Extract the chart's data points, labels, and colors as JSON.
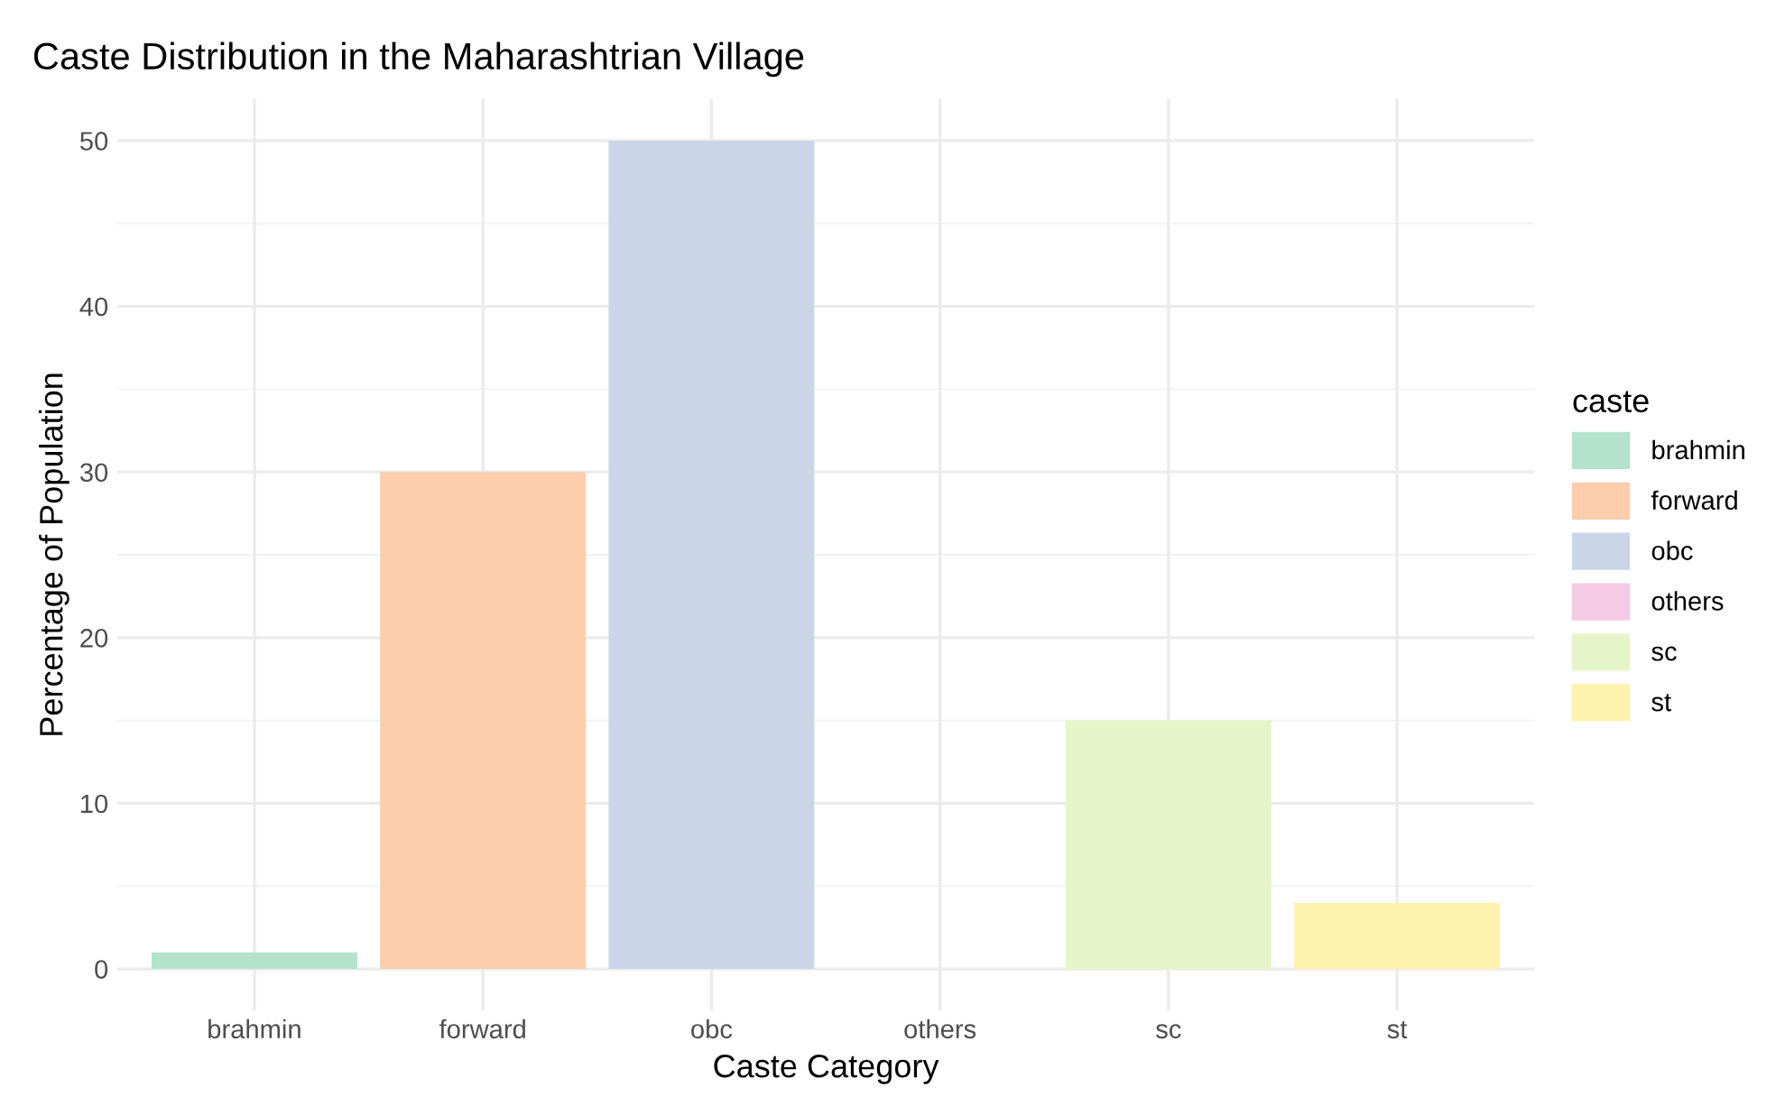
{
  "chart_data": {
    "type": "bar",
    "title": "Caste Distribution in the Maharashtrian Village",
    "xlabel": "Caste Category",
    "ylabel": "Percentage of Population",
    "legend_title": "caste",
    "categories": [
      "brahmin",
      "forward",
      "obc",
      "others",
      "sc",
      "st"
    ],
    "series": [
      {
        "name": "brahmin",
        "color": "#b3e2cd",
        "values": [
          1,
          null,
          null,
          null,
          null,
          null
        ]
      },
      {
        "name": "forward",
        "color": "#fdcdac",
        "values": [
          null,
          30,
          null,
          null,
          null,
          null
        ]
      },
      {
        "name": "obc",
        "color": "#cbd5e8",
        "values": [
          null,
          null,
          50,
          null,
          null,
          null
        ]
      },
      {
        "name": "others",
        "color": "#f4cae4",
        "values": [
          null,
          null,
          null,
          0,
          null,
          null
        ]
      },
      {
        "name": "sc",
        "color": "#e6f5c9",
        "values": [
          null,
          null,
          null,
          null,
          15,
          null
        ]
      },
      {
        "name": "st",
        "color": "#fff2ae",
        "values": [
          null,
          null,
          null,
          null,
          null,
          4
        ]
      }
    ],
    "ylim": [
      -2.5,
      52.5
    ],
    "yticks": [
      0,
      10,
      20,
      30,
      40,
      50
    ],
    "grid": true,
    "legend": "right"
  }
}
